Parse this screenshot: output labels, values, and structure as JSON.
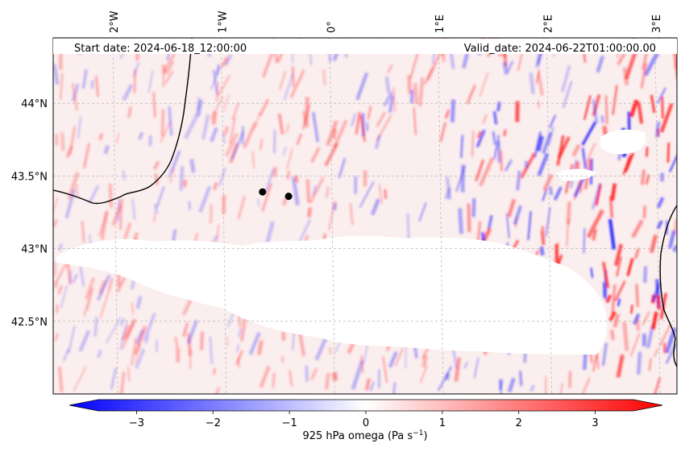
{
  "header": {
    "start_date": "Start date: 2024-06-18_12:00:00",
    "valid_date": "Valid_date: 2024-06-22T01:00:00.00"
  },
  "map": {
    "lon_range": [
      -2.55,
      3.2
    ],
    "lat_range": [
      42.0,
      44.45
    ],
    "lon_ticks": [
      {
        "value": -2,
        "label": "2°W"
      },
      {
        "value": -1,
        "label": "1°W"
      },
      {
        "value": 0,
        "label": "0°"
      },
      {
        "value": 1,
        "label": "1°E"
      },
      {
        "value": 2,
        "label": "2°E"
      },
      {
        "value": 3,
        "label": "3°E"
      }
    ],
    "lat_ticks": [
      {
        "value": 44,
        "label": "44°N"
      },
      {
        "value": 43.5,
        "label": "43.5°N"
      },
      {
        "value": 43,
        "label": "43°N"
      },
      {
        "value": 42.5,
        "label": "42.5°N"
      }
    ],
    "gridlines": true,
    "markers": [
      {
        "lon": -0.62,
        "lat": 43.39
      },
      {
        "lon": -0.38,
        "lat": 43.36
      }
    ],
    "colors": {
      "negative": "#0000ff",
      "positive": "#ff0000",
      "neutral": "#ffffff",
      "coast": "#000000"
    }
  },
  "colorbar": {
    "label": "925 hPa omega (Pa s",
    "label_sup": "−1",
    "label_end": ")",
    "range": [
      -3.5,
      3.5
    ],
    "ticks": [
      {
        "value": -3,
        "label": "−3"
      },
      {
        "value": -2,
        "label": "−2"
      },
      {
        "value": -1,
        "label": "−1"
      },
      {
        "value": 0,
        "label": "0"
      },
      {
        "value": 1,
        "label": "1"
      },
      {
        "value": 2,
        "label": "2"
      },
      {
        "value": 3,
        "label": "3"
      }
    ]
  }
}
